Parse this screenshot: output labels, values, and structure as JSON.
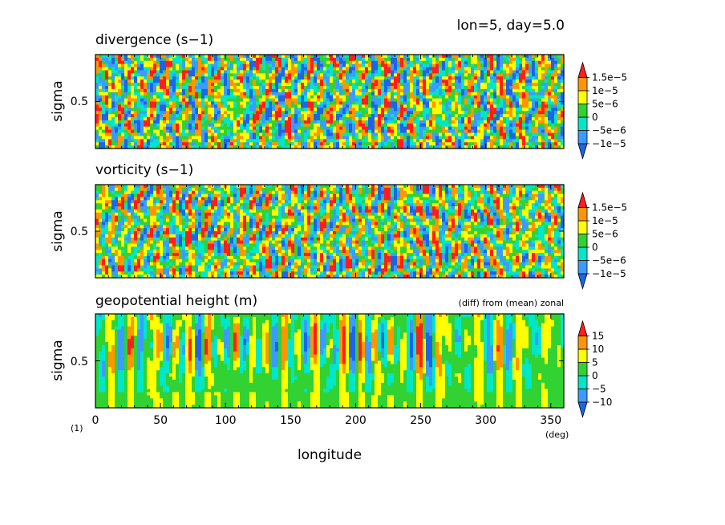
{
  "header": {
    "info": "lon=5, day=5.0"
  },
  "footer": {
    "panel_number": "(1)",
    "x_unit": "(deg)"
  },
  "colors": {
    "levels": [
      "#1e64e6",
      "#3c9bff",
      "#00e6c8",
      "#32d232",
      "#ffff00",
      "#ff9600",
      "#ff1e1e"
    ],
    "frame": "#000000"
  },
  "chart_data": [
    {
      "type": "heatmap",
      "title": "divergence (s−1)",
      "note": "",
      "xlabel": "",
      "ylabel": "sigma",
      "xlim": [
        0,
        360
      ],
      "ylim": [
        0,
        1
      ],
      "y_ticks": [
        {
          "value": 0.5,
          "label": "0.5"
        }
      ],
      "x_ticks": [
        0,
        50,
        100,
        150,
        200,
        250,
        300,
        350
      ],
      "colorbar": {
        "thresholds": [
          -1e-05,
          -5e-06,
          0,
          5e-06,
          1e-05,
          1.5e-05
        ],
        "labels": [
          "−1e−5",
          "−5e−6",
          "0",
          "5e−6",
          "1e−5",
          "1.5e−5"
        ]
      },
      "field": {
        "seed": 11,
        "freq_x": 34,
        "freq_y": 5,
        "style": "cellular",
        "bias": 0.0
      }
    },
    {
      "type": "heatmap",
      "title": "vorticity (s−1)",
      "note": "",
      "xlabel": "",
      "ylabel": "sigma",
      "xlim": [
        0,
        360
      ],
      "ylim": [
        0,
        1
      ],
      "y_ticks": [
        {
          "value": 0.5,
          "label": "0.5"
        }
      ],
      "x_ticks": [
        0,
        50,
        100,
        150,
        200,
        250,
        300,
        350
      ],
      "colorbar": {
        "thresholds": [
          -1e-05,
          -5e-06,
          0,
          5e-06,
          1e-05,
          1.5e-05
        ],
        "labels": [
          "−1e−5",
          "−5e−6",
          "0",
          "5e−6",
          "1e−5",
          "1.5e−5"
        ]
      },
      "field": {
        "seed": 29,
        "freq_x": 26,
        "freq_y": 4,
        "style": "cellular",
        "bias": 0.1
      }
    },
    {
      "type": "heatmap",
      "title": "geopotential height (m)",
      "note": "(diff) from (mean) zonal",
      "xlabel": "longitude",
      "ylabel": "sigma",
      "xlim": [
        0,
        360
      ],
      "ylim": [
        0,
        1
      ],
      "y_ticks": [
        {
          "value": 0.5,
          "label": "0.5"
        }
      ],
      "x_ticks": [
        0,
        50,
        100,
        150,
        200,
        250,
        300,
        350
      ],
      "x_tick_labels": [
        "0",
        "50",
        "100",
        "150",
        "200",
        "250",
        "300",
        "350"
      ],
      "colorbar": {
        "thresholds": [
          -10,
          -5,
          0,
          5,
          10,
          15
        ],
        "labels": [
          "−10",
          "−5",
          "0",
          "5",
          "10",
          "15"
        ]
      },
      "field": {
        "seed": 47,
        "freq_x": 22,
        "freq_y": 2,
        "style": "columnar",
        "bias": 0.0
      }
    }
  ]
}
